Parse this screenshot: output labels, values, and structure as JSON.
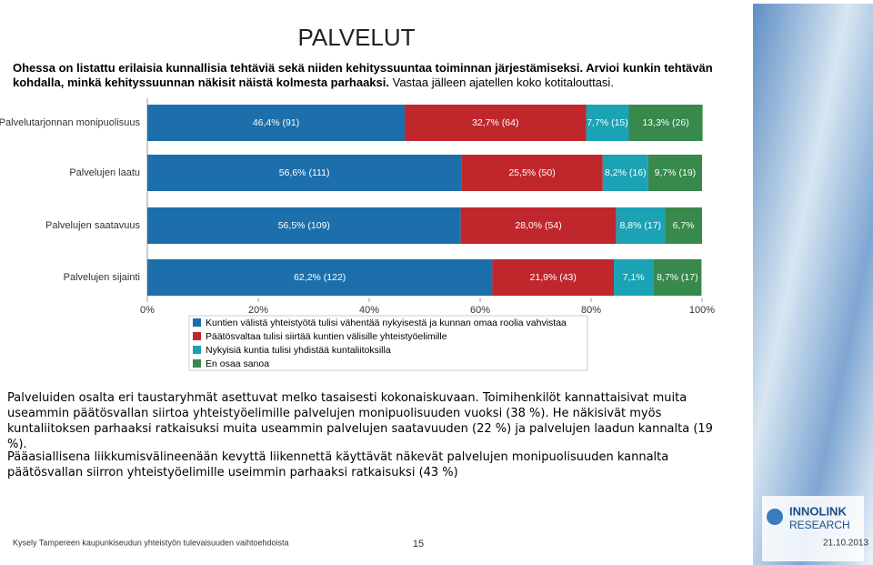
{
  "slide": {
    "title": "PALVELUT",
    "intro_bold": "Ohessa on listattu erilaisia kunnallisia tehtäviä sekä niiden kehityssuuntaa toiminnan järjestämiseksi. Arvioi kunkin tehtävän kohdalla, minkä kehityssuunnan näkisit näistä kolmesta parhaaksi.",
    "intro_normal": "Vastaa jälleen ajatellen koko kotitalouttasi.",
    "paragraphs": [
      "Palveluiden osalta eri taustaryhmät asettuvat melko tasaisesti kokonaiskuvaan. Toimihenkilöt kannattaisivat muita useammin päätösvallan siirtoa yhteistyöelimille palvelujen monipuolisuuden vuoksi (38 %). He näkisivät myös kuntaliitoksen parhaaksi ratkaisuksi muita useammin palvelujen saatavuuden (22 %) ja palvelujen laadun kannalta (19 %).",
      "Pääasiallisena liikkumisvälineenään kevyttä liikennettä käyttävät näkevät palvelujen monipuolisuuden kannalta päätösvallan siirron yhteistyöelimille useimmin parhaaksi ratkaisuksi (43 %)"
    ],
    "footer": "Kysely Tampereen kaupunkiseudun yhteistyön tulevaisuuden vaihtoehdoista",
    "page_number": "15",
    "logo_line1": "INNOLINK",
    "logo_line2": "RESEARCH",
    "date": "21.10.2013"
  },
  "chart_data": {
    "type": "stacked_bar_horizontal",
    "categories": [
      "Palvelutarjonnan monipuolisuus",
      "Palvelujen laatu",
      "Palvelujen saatavuus",
      "Palvelujen sijainti"
    ],
    "series": [
      {
        "name": "Kuntien välistä yhteistyötä tulisi vähentää nykyisestä ja kunnan omaa roolia vahvistaa",
        "color": "#1c6fab",
        "values": [
          46.4,
          56.6,
          56.5,
          62.2
        ],
        "value_labels": [
          "46,4% (91)",
          "56,6% (111)",
          "56,5% (109)",
          "62,2% (122)"
        ]
      },
      {
        "name": "Päätösvaltaa tulisi siirtää kuntien välisille yhteistyöelimille",
        "color": "#c0272d",
        "values": [
          32.7,
          25.5,
          28.0,
          21.9
        ],
        "value_labels": [
          "32,7% (64)",
          "25,5% (50)",
          "28,0% (54)",
          "21,9% (43)"
        ]
      },
      {
        "name": "Nykyisiä kuntia tulisi yhdistää kuntaliitoksilla",
        "color": "#1ba2b4",
        "values": [
          7.7,
          8.2,
          8.8,
          7.1
        ],
        "value_labels": [
          "7,7% (15)",
          "8,2% (16)",
          "8,8% (17)",
          "7,1%"
        ]
      },
      {
        "name": "En osaa sanoa",
        "color": "#37894c",
        "values": [
          13.3,
          9.7,
          6.7,
          8.7
        ],
        "value_labels": [
          "13,3% (26)",
          "9,7% (19)",
          "6,7%",
          "8,7% (17)"
        ]
      }
    ],
    "xlim": [
      0,
      100
    ],
    "xticks": [
      {
        "value": 0,
        "label": "0%"
      },
      {
        "value": 20,
        "label": "20%"
      },
      {
        "value": 40,
        "label": "40%"
      },
      {
        "value": 60,
        "label": "60%"
      },
      {
        "value": 80,
        "label": "80%"
      },
      {
        "value": 100,
        "label": "100%"
      }
    ]
  }
}
